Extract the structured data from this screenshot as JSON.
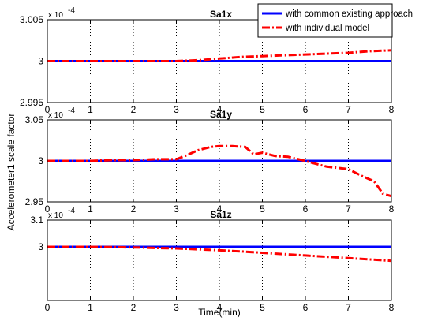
{
  "chart_data": {
    "type": "line",
    "ylabel": "Accelerometer1 scale factor",
    "xlabel": "Time(min)",
    "legend": {
      "placement": "top-right",
      "entries": [
        {
          "label": "with common existing approach",
          "color": "#0000ff",
          "style": "solid"
        },
        {
          "label": "with individual model",
          "color": "#ff0000",
          "style": "dash-dot"
        }
      ]
    },
    "x_ticks": [
      "0",
      "1",
      "2",
      "3",
      "4",
      "5",
      "6",
      "7",
      "8"
    ],
    "xlim": [
      0,
      8
    ],
    "grid": "vertical-dotted",
    "subplots": [
      {
        "title": "Sa1x",
        "exponent": "x 10",
        "exponent_power": "-4",
        "ylim": [
          2.995,
          3.005
        ],
        "y_ticks": [
          {
            "value": 2.995,
            "label": "2.995"
          },
          {
            "value": 3.0,
            "label": "3"
          },
          {
            "value": 3.005,
            "label": "3.005"
          }
        ],
        "series": [
          {
            "name": "with common existing approach",
            "x": [
              0,
              8
            ],
            "y": [
              3.0,
              3.0
            ]
          },
          {
            "name": "with individual model",
            "x": [
              0,
              0.5,
              1,
              1.5,
              2,
              2.5,
              3,
              3.5,
              4,
              4.5,
              5,
              5.5,
              6,
              6.5,
              7,
              7.5,
              8
            ],
            "y": [
              3.0,
              3.0,
              3.0,
              3.0,
              3.0,
              3.0,
              3.0,
              3.0001,
              3.0003,
              3.0005,
              3.0006,
              3.0007,
              3.0008,
              3.0009,
              3.001,
              3.0012,
              3.0013
            ]
          }
        ]
      },
      {
        "title": "Sa1y",
        "exponent": "x 10",
        "exponent_power": "-4",
        "ylim": [
          2.95,
          3.05
        ],
        "y_ticks": [
          {
            "value": 2.95,
            "label": "2.95"
          },
          {
            "value": 3.0,
            "label": "3"
          },
          {
            "value": 3.05,
            "label": "3.05"
          }
        ],
        "series": [
          {
            "name": "with common existing approach",
            "x": [
              0,
              8
            ],
            "y": [
              3.0,
              3.0
            ]
          },
          {
            "name": "with individual model",
            "x": [
              0,
              0.5,
              1,
              1.5,
              2,
              2.5,
              3,
              3.2,
              3.5,
              3.8,
              4,
              4.3,
              4.6,
              4.8,
              5,
              5.3,
              5.6,
              6,
              6.2,
              6.5,
              7,
              7.3,
              7.6,
              7.8,
              8
            ],
            "y": [
              3.0,
              3.0,
              3.0,
              3.001,
              3.001,
              3.002,
              3.002,
              3.006,
              3.013,
              3.017,
              3.018,
              3.018,
              3.017,
              3.008,
              3.01,
              3.006,
              3.005,
              3.0,
              2.997,
              2.993,
              2.99,
              2.982,
              2.975,
              2.96,
              2.957
            ]
          }
        ]
      },
      {
        "title": "Sa1z",
        "exponent": "x 10",
        "exponent_power": "-4",
        "ylim": [
          2.8,
          3.1
        ],
        "y_ticks": [
          {
            "value": 3.0,
            "label": "3"
          },
          {
            "value": 3.1,
            "label": "3.1"
          }
        ],
        "series": [
          {
            "name": "with common existing approach",
            "x": [
              0,
              8
            ],
            "y": [
              3.0,
              3.0
            ]
          },
          {
            "name": "with individual model",
            "x": [
              0,
              0.5,
              1,
              1.5,
              2,
              2.5,
              3,
              3.5,
              4,
              4.5,
              5,
              5.5,
              6,
              6.5,
              7,
              7.5,
              8
            ],
            "y": [
              3.0,
              3.0,
              3.0,
              2.999,
              2.998,
              2.996,
              2.994,
              2.991,
              2.987,
              2.983,
              2.978,
              2.973,
              2.968,
              2.963,
              2.958,
              2.953,
              2.948
            ]
          }
        ]
      }
    ]
  }
}
